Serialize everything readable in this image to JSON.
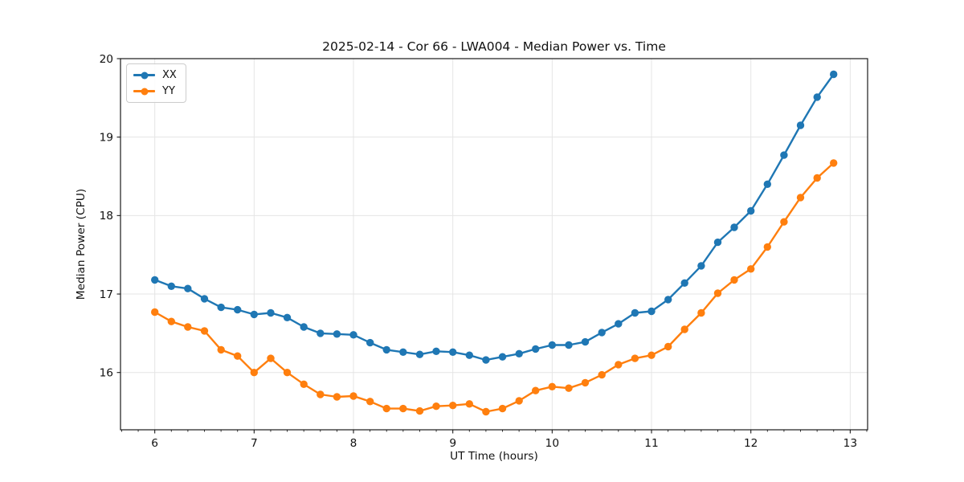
{
  "chart_data": {
    "type": "line",
    "title": "2025-02-14 - Cor 66 - LWA004 - Median Power vs. Time",
    "xlabel": "UT Time (hours)",
    "ylabel": "Median Power (CPU)",
    "xlim": [
      5.655,
      13.175
    ],
    "ylim": [
      15.27,
      20.0
    ],
    "x_ticks": [
      6,
      7,
      8,
      9,
      10,
      11,
      12,
      13
    ],
    "y_ticks": [
      16,
      17,
      18,
      19,
      20
    ],
    "x_minor_per_major": 6,
    "grid": true,
    "grid_color": "#e5e5e5",
    "spine_color": "#1a1a1a",
    "legend_position": "upper-left",
    "marker": "circle",
    "x": [
      6.0,
      6.167,
      6.333,
      6.5,
      6.667,
      6.833,
      7.0,
      7.167,
      7.333,
      7.5,
      7.667,
      7.833,
      8.0,
      8.167,
      8.333,
      8.5,
      8.667,
      8.833,
      9.0,
      9.167,
      9.333,
      9.5,
      9.667,
      9.833,
      10.0,
      10.167,
      10.333,
      10.5,
      10.667,
      10.833,
      11.0,
      11.167,
      11.333,
      11.5,
      11.667,
      11.833,
      12.0,
      12.167,
      12.333,
      12.5,
      12.667,
      12.833
    ],
    "series": [
      {
        "name": "XX",
        "color": "#1f77b4",
        "values": [
          17.18,
          17.1,
          17.07,
          16.94,
          16.83,
          16.8,
          16.74,
          16.76,
          16.7,
          16.58,
          16.5,
          16.49,
          16.48,
          16.38,
          16.29,
          16.26,
          16.23,
          16.27,
          16.26,
          16.22,
          16.16,
          16.2,
          16.24,
          16.3,
          16.35,
          16.35,
          16.39,
          16.51,
          16.62,
          16.76,
          16.78,
          16.93,
          17.14,
          17.36,
          17.66,
          17.85,
          18.06,
          18.4,
          18.77,
          19.15,
          19.51,
          19.8
        ]
      },
      {
        "name": "YY",
        "color": "#ff7f0e",
        "values": [
          16.77,
          16.65,
          16.58,
          16.53,
          16.29,
          16.21,
          16.0,
          16.18,
          16.0,
          15.85,
          15.72,
          15.69,
          15.7,
          15.63,
          15.54,
          15.54,
          15.51,
          15.57,
          15.58,
          15.6,
          15.5,
          15.54,
          15.64,
          15.77,
          15.82,
          15.8,
          15.87,
          15.97,
          16.1,
          16.18,
          16.22,
          16.33,
          16.55,
          16.76,
          17.01,
          17.18,
          17.32,
          17.6,
          17.92,
          18.23,
          18.48,
          18.67
        ]
      }
    ]
  }
}
